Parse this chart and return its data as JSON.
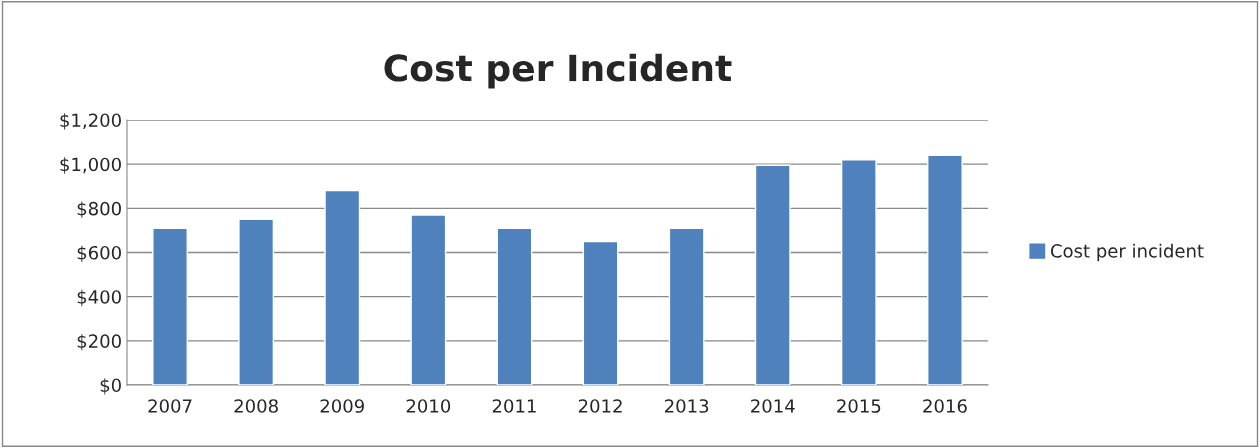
{
  "chart_data": {
    "type": "bar",
    "title": "Cost per Incident",
    "categories": [
      "2007",
      "2008",
      "2009",
      "2010",
      "2011",
      "2012",
      "2013",
      "2014",
      "2015",
      "2016"
    ],
    "series": [
      {
        "name": "Cost per incident",
        "color": "#4f81bd",
        "values": [
          710,
          750,
          880,
          770,
          710,
          650,
          710,
          995,
          1020,
          1040
        ]
      }
    ],
    "ylim": [
      0,
      1200
    ],
    "yticks": [
      {
        "value": 0,
        "label": "$0"
      },
      {
        "value": 200,
        "label": "$200"
      },
      {
        "value": 400,
        "label": "$400"
      },
      {
        "value": 600,
        "label": "$600"
      },
      {
        "value": 800,
        "label": "$800"
      },
      {
        "value": 1000,
        "label": "$1,000"
      },
      {
        "value": 1200,
        "label": "$1,200"
      }
    ],
    "grid": "y",
    "legend": "right"
  }
}
